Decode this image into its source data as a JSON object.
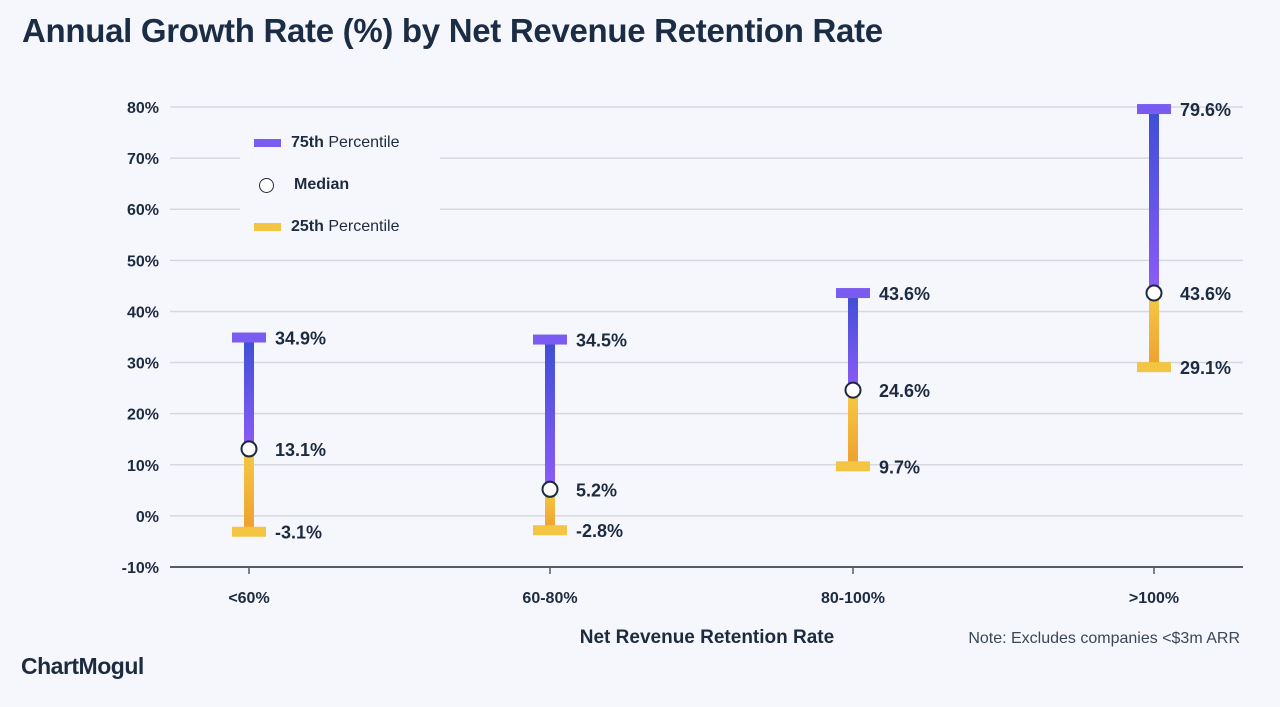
{
  "title": "Annual Growth Rate (%) by Net Revenue Retention Rate",
  "logo": "ChartMogul",
  "note": "Note: Excludes companies <$3m ARR",
  "chart_data": {
    "type": "range",
    "title": "Annual Growth Rate (%) by Net Revenue Retention Rate",
    "xlabel": "Net Revenue Retention Rate",
    "ylabel": "",
    "categories": [
      "<60%",
      "60-80%",
      "80-100%",
      ">100%"
    ],
    "ylim": [
      -10,
      80
    ],
    "yticks": [
      -10,
      0,
      10,
      20,
      30,
      40,
      50,
      60,
      70,
      80
    ],
    "ytick_labels": [
      "-10%",
      "0%",
      "10%",
      "20%",
      "30%",
      "40%",
      "50%",
      "60%",
      "70%",
      "80%"
    ],
    "grid": true,
    "legend_placement": "top-left",
    "series": [
      {
        "name": "75th Percentile",
        "bold": "75th",
        "rest": " Percentile",
        "values": [
          34.9,
          34.5,
          43.6,
          79.6
        ],
        "labels": [
          "34.9%",
          "34.5%",
          "43.6%",
          "79.6%"
        ],
        "color": "#7b5cf0"
      },
      {
        "name": "Median",
        "values": [
          13.1,
          5.2,
          24.6,
          43.6
        ],
        "labels": [
          "13.1%",
          "5.2%",
          "24.6%",
          "43.6%"
        ],
        "color": "#ffffff"
      },
      {
        "name": "25th Percentile",
        "bold": "25th",
        "rest": " Percentile",
        "values": [
          -3.1,
          -2.8,
          9.7,
          29.1
        ],
        "labels": [
          "-3.1%",
          "-2.8%",
          "9.7%",
          "29.1%"
        ],
        "color": "#f4c542"
      }
    ],
    "colors": {
      "upper_gradient_top": "#3d4fd4",
      "upper_gradient_bottom": "#8d5cf6",
      "lower_gradient_top": "#f6c945",
      "lower_gradient_bottom": "#eea02e"
    }
  }
}
